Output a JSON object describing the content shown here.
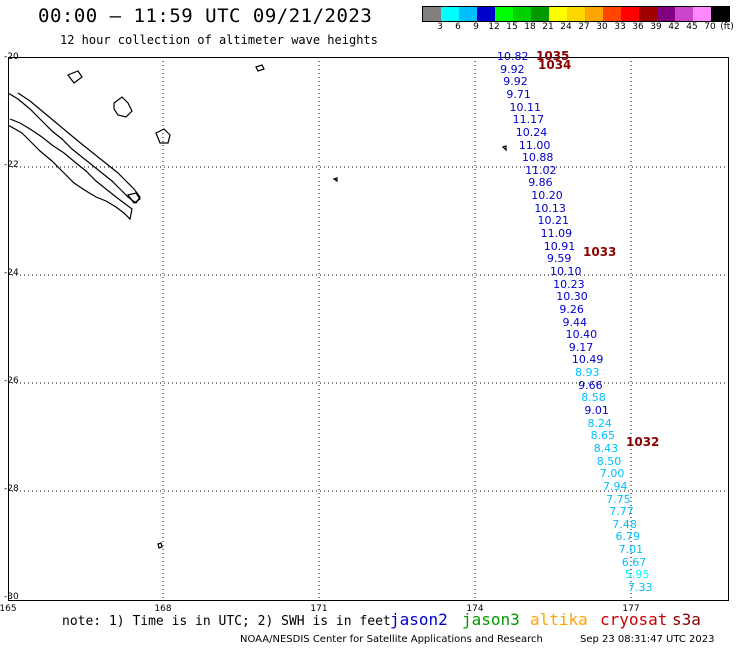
{
  "header": {
    "title": "00:00 – 11:59 UTC 09/21/2023",
    "subtitle": "12 hour collection of altimeter wave heights"
  },
  "legend": {
    "unit": "(ft)",
    "bins": [
      {
        "label": "3",
        "color": "#808080"
      },
      {
        "label": "6",
        "color": "#00ffff"
      },
      {
        "label": "9",
        "color": "#00bfff"
      },
      {
        "label": "12",
        "color": "#0000cd"
      },
      {
        "label": "15",
        "color": "#00ff00"
      },
      {
        "label": "18",
        "color": "#00d000"
      },
      {
        "label": "21",
        "color": "#009900"
      },
      {
        "label": "24",
        "color": "#ffff00"
      },
      {
        "label": "27",
        "color": "#ffd700"
      },
      {
        "label": "30",
        "color": "#ffa500"
      },
      {
        "label": "33",
        "color": "#ff4500"
      },
      {
        "label": "36",
        "color": "#ff0000"
      },
      {
        "label": "39",
        "color": "#a00000"
      },
      {
        "label": "42",
        "color": "#800080"
      },
      {
        "label": "45",
        "color": "#cc44cc"
      },
      {
        "label": "70",
        "color": "#ff88ff"
      },
      {
        "label": "",
        "color": "#000000"
      }
    ]
  },
  "map": {
    "lat_labels": [
      "-20",
      "-22",
      "-24",
      "-26",
      "-28",
      "-30"
    ],
    "lon_labels": [
      "165",
      "168",
      "171",
      "174",
      "177"
    ],
    "wave_heights": [
      {
        "value": "10.82",
        "color": "#0000cd"
      },
      {
        "value": "9.92",
        "color": "#0000cd"
      },
      {
        "value": "9.92",
        "color": "#0000cd"
      },
      {
        "value": "9.71",
        "color": "#0000cd"
      },
      {
        "value": "10.11",
        "color": "#0000cd"
      },
      {
        "value": "11.17",
        "color": "#0000cd"
      },
      {
        "value": "10.24",
        "color": "#0000cd"
      },
      {
        "value": "11.00",
        "color": "#0000cd"
      },
      {
        "value": "10.88",
        "color": "#0000cd"
      },
      {
        "value": "11.02",
        "color": "#0000cd"
      },
      {
        "value": "9.86",
        "color": "#0000cd"
      },
      {
        "value": "10.20",
        "color": "#0000cd"
      },
      {
        "value": "10.13",
        "color": "#0000cd"
      },
      {
        "value": "10.21",
        "color": "#0000cd"
      },
      {
        "value": "11.09",
        "color": "#0000cd"
      },
      {
        "value": "10.91",
        "color": "#0000cd"
      },
      {
        "value": "9.59",
        "color": "#0000cd"
      },
      {
        "value": "10.10",
        "color": "#0000cd"
      },
      {
        "value": "10.23",
        "color": "#0000cd"
      },
      {
        "value": "10.30",
        "color": "#0000cd"
      },
      {
        "value": "9.26",
        "color": "#0000cd"
      },
      {
        "value": "9.44",
        "color": "#0000cd"
      },
      {
        "value": "10.40",
        "color": "#0000cd"
      },
      {
        "value": "9.17",
        "color": "#0000cd"
      },
      {
        "value": "10.49",
        "color": "#0000cd"
      },
      {
        "value": "8.93",
        "color": "#00bfff"
      },
      {
        "value": "9.66",
        "color": "#0000cd"
      },
      {
        "value": "8.58",
        "color": "#00bfff"
      },
      {
        "value": "9.01",
        "color": "#0000cd"
      },
      {
        "value": "8.24",
        "color": "#00bfff"
      },
      {
        "value": "8.65",
        "color": "#00bfff"
      },
      {
        "value": "8.43",
        "color": "#00bfff"
      },
      {
        "value": "8.50",
        "color": "#00bfff"
      },
      {
        "value": "7.00",
        "color": "#00bfff"
      },
      {
        "value": "7.94",
        "color": "#00bfff"
      },
      {
        "value": "7.75",
        "color": "#00bfff"
      },
      {
        "value": "7.77",
        "color": "#00bfff"
      },
      {
        "value": "7.48",
        "color": "#00bfff"
      },
      {
        "value": "6.79",
        "color": "#00bfff"
      },
      {
        "value": "7.01",
        "color": "#00bfff"
      },
      {
        "value": "6.67",
        "color": "#00bfff"
      },
      {
        "value": "5.95",
        "color": "#00ffff"
      },
      {
        "value": "7.33",
        "color": "#00bfff"
      }
    ],
    "pressure_labels": [
      "1035",
      "1034",
      "1033",
      "1032"
    ]
  },
  "footer": {
    "note": "note: 1) Time is in UTC; 2) SWH is in feet",
    "satellites": [
      {
        "name": "jason2",
        "color": "#0000cd"
      },
      {
        "name": "jason3",
        "color": "#009900"
      },
      {
        "name": "altika",
        "color": "#ffa500"
      },
      {
        "name": "cryosat",
        "color": "#cc0000"
      },
      {
        "name": "s3a",
        "color": "#8b0000"
      }
    ],
    "credit": "NOAA/NESDIS Center for Satellite Applications and Research",
    "timestamp": "Sep 23 08:31:47 UTC 2023"
  }
}
